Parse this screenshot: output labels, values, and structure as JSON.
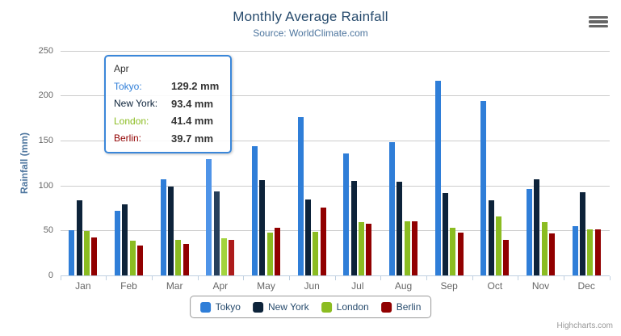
{
  "header": {
    "title": "Monthly Average Rainfall",
    "subtitle": "Source: WorldClimate.com"
  },
  "y_axis": {
    "title": "Rainfall (mm)"
  },
  "chart_data": {
    "type": "bar",
    "title": "Monthly Average Rainfall",
    "subtitle": "Source: WorldClimate.com",
    "xlabel": "",
    "ylabel": "Rainfall (mm)",
    "ylim": [
      0,
      250
    ],
    "yticks": [
      0,
      50,
      100,
      150,
      200,
      250
    ],
    "grid": true,
    "legend_position": "bottom",
    "categories": [
      "Jan",
      "Feb",
      "Mar",
      "Apr",
      "May",
      "Jun",
      "Jul",
      "Aug",
      "Sep",
      "Oct",
      "Nov",
      "Dec"
    ],
    "hovered_category": "Apr",
    "hovered_category_index": 3,
    "series": [
      {
        "name": "Tokyo",
        "color": "#2f7ed8",
        "hover_color": "#4f94e8",
        "values": [
          49.9,
          71.5,
          106.4,
          129.2,
          144.0,
          176.0,
          135.6,
          148.5,
          216.4,
          194.1,
          95.6,
          54.4
        ]
      },
      {
        "name": "New York",
        "color": "#0d233a",
        "hover_color": "#27405c",
        "values": [
          83.6,
          78.8,
          98.5,
          93.4,
          106.0,
          84.5,
          105.0,
          104.3,
          91.2,
          83.5,
          106.6,
          92.3
        ]
      },
      {
        "name": "London",
        "color": "#8bbc21",
        "hover_color": "#a3d43e",
        "values": [
          48.9,
          38.8,
          39.3,
          41.4,
          47.0,
          48.3,
          59.0,
          59.6,
          52.4,
          65.2,
          59.3,
          51.2
        ]
      },
      {
        "name": "Berlin",
        "color": "#910000",
        "hover_color": "#ad1c1c",
        "values": [
          42.4,
          33.2,
          34.5,
          39.7,
          52.6,
          75.5,
          57.4,
          60.4,
          47.6,
          39.1,
          46.8,
          51.1
        ]
      }
    ]
  },
  "tooltip": {
    "header": "Apr",
    "border_color": "#3b87d9",
    "rows": [
      {
        "label": "Tokyo:",
        "value": "129.2 mm",
        "color": "#2f7ed8"
      },
      {
        "label": "New York:",
        "value": "93.4 mm",
        "color": "#0d233a"
      },
      {
        "label": "London:",
        "value": "41.4 mm",
        "color": "#8bbc21"
      },
      {
        "label": "Berlin:",
        "value": "39.7 mm",
        "color": "#910000"
      }
    ]
  },
  "credits": {
    "label": "Highcharts.com"
  },
  "icons": {
    "export_menu": "hamburger-icon"
  },
  "colors": {
    "title": "#274b6d",
    "subtitle": "#4d759e",
    "axis_labels": "#666666",
    "gridline": "#cccccc",
    "axis_line": "#c0d0e0",
    "legend_text": "#274b6d"
  }
}
